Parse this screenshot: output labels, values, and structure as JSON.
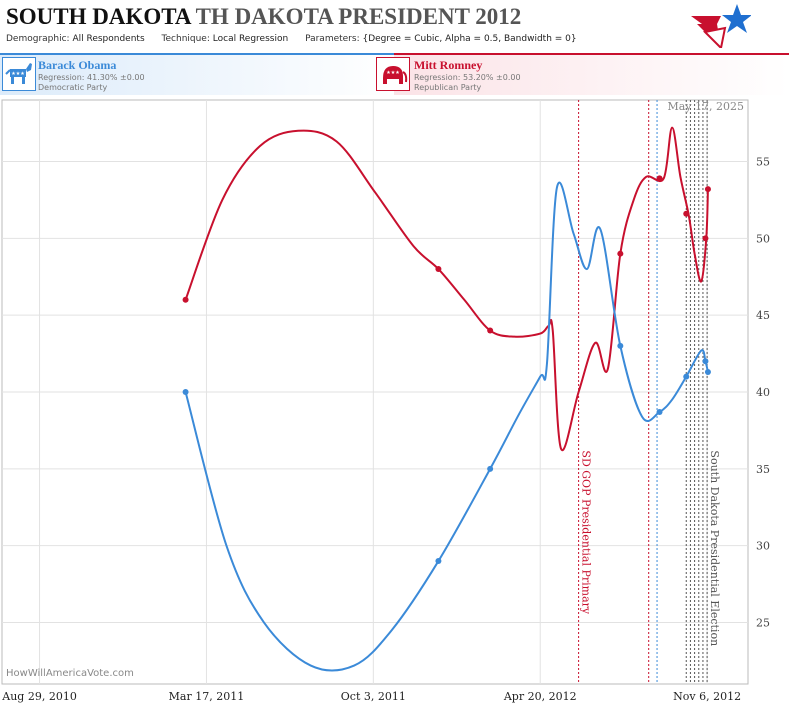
{
  "header": {
    "title_state": "SOUTH DAKOTA",
    "title_rest": "TH DAKOTA PRESIDENT 2012",
    "params": [
      {
        "key": "Demographic:",
        "value": "All Respondents"
      },
      {
        "key": "Technique:",
        "value": "Local Regression"
      },
      {
        "key": "Parameters:",
        "value": "{Degree = Cubic, Alpha = 0.5, Bandwidth = 0}"
      }
    ]
  },
  "candidates": {
    "dem": {
      "name": "Barack Obama",
      "regression": "Regression: 41.30% ±0.00",
      "party": "Democratic Party",
      "icon": "donkey-icon",
      "color": "#3b8ad8"
    },
    "rep": {
      "name": "Mitt Romney",
      "regression": "Regression: 53.20% ±0.00",
      "party": "Republican Party",
      "icon": "elephant-icon",
      "color": "#c8102e"
    }
  },
  "date_label": "May 17, 2025",
  "watermark": "HowWillAmericaVote.com",
  "chart_data": {
    "type": "line",
    "x_type": "date",
    "xlim": [
      "2010-07-15",
      "2012-12-25"
    ],
    "ylim": [
      21,
      59
    ],
    "y_ticks": [
      25,
      30,
      35,
      40,
      45,
      50,
      55
    ],
    "x_ticks": [
      "2010-08-29",
      "2011-03-17",
      "2011-10-03",
      "2012-04-20",
      "2012-11-06"
    ],
    "x_tick_labels": [
      "Aug 29, 2010",
      "Mar 17, 2011",
      "Oct 3, 2011",
      "Apr 20, 2012",
      "Nov 6, 2012"
    ],
    "grid": true,
    "series": [
      {
        "name": "Mitt Romney",
        "color": "#c8102e",
        "curve": [
          [
            "2011-02-20",
            46
          ],
          [
            "2011-04-05",
            52.5
          ],
          [
            "2011-05-20",
            56
          ],
          [
            "2011-07-05",
            57
          ],
          [
            "2011-08-20",
            56.3
          ],
          [
            "2011-10-05",
            53
          ],
          [
            "2011-11-20",
            49.5
          ],
          [
            "2011-12-20",
            48
          ],
          [
            "2012-01-20",
            46
          ],
          [
            "2012-02-20",
            44
          ],
          [
            "2012-03-20",
            43.6
          ],
          [
            "2012-04-20",
            43.8
          ],
          [
            "2012-04-30",
            44.3
          ],
          [
            "2012-05-05",
            44
          ],
          [
            "2012-05-15",
            36.3
          ],
          [
            "2012-06-05",
            40
          ],
          [
            "2012-06-25",
            43.2
          ],
          [
            "2012-07-10",
            41.5
          ],
          [
            "2012-07-25",
            49
          ],
          [
            "2012-08-10",
            52.5
          ],
          [
            "2012-08-25",
            54
          ],
          [
            "2012-09-15",
            53.9
          ],
          [
            "2012-09-25",
            57.2
          ],
          [
            "2012-10-05",
            54
          ],
          [
            "2012-10-15",
            51.5
          ],
          [
            "2012-10-22",
            49
          ],
          [
            "2012-10-30",
            47.2
          ],
          [
            "2012-11-05",
            50
          ],
          [
            "2012-11-07",
            53.2
          ]
        ],
        "points": [
          [
            "2011-02-20",
            46
          ],
          [
            "2011-12-20",
            48
          ],
          [
            "2012-02-20",
            44
          ],
          [
            "2012-07-25",
            49
          ],
          [
            "2012-09-10",
            53.9
          ],
          [
            "2012-10-12",
            51.6
          ],
          [
            "2012-11-04",
            50
          ],
          [
            "2012-11-07",
            53.2
          ]
        ]
      },
      {
        "name": "Barack Obama",
        "color": "#3b8ad8",
        "curve": [
          [
            "2011-02-20",
            40
          ],
          [
            "2011-04-10",
            30
          ],
          [
            "2011-05-25",
            25
          ],
          [
            "2011-07-20",
            22.2
          ],
          [
            "2011-09-10",
            22.2
          ],
          [
            "2011-10-25",
            24.5
          ],
          [
            "2011-12-20",
            29
          ],
          [
            "2012-02-20",
            35
          ],
          [
            "2012-03-25",
            38.5
          ],
          [
            "2012-04-20",
            41
          ],
          [
            "2012-04-28",
            41.8
          ],
          [
            "2012-05-10",
            53.3
          ],
          [
            "2012-05-30",
            50.3
          ],
          [
            "2012-06-15",
            48
          ],
          [
            "2012-07-01",
            50.6
          ],
          [
            "2012-07-25",
            43
          ],
          [
            "2012-08-20",
            38.4
          ],
          [
            "2012-09-10",
            38.7
          ],
          [
            "2012-09-25",
            39.5
          ],
          [
            "2012-10-12",
            41
          ],
          [
            "2012-10-30",
            42.7
          ],
          [
            "2012-11-04",
            42
          ],
          [
            "2012-11-07",
            41.3
          ]
        ],
        "points": [
          [
            "2011-02-20",
            40
          ],
          [
            "2011-12-20",
            29
          ],
          [
            "2012-02-20",
            35
          ],
          [
            "2012-07-25",
            43
          ],
          [
            "2012-09-10",
            38.7
          ],
          [
            "2012-10-12",
            41
          ],
          [
            "2012-11-04",
            42
          ],
          [
            "2012-11-07",
            41.3
          ]
        ]
      }
    ],
    "event_lines": [
      {
        "date": "2012-06-05",
        "color": "#c8102e",
        "label": "SD GOP Presidential Primary"
      },
      {
        "date": "2012-11-06",
        "color": "#555555",
        "label": "South Dakota Presidential Election"
      }
    ],
    "poll_lines": [
      {
        "date": "2012-08-28",
        "color": "#c8102e"
      },
      {
        "date": "2012-09-07",
        "color": "#3b8ad8"
      },
      {
        "date": "2012-10-12",
        "color": "#555555"
      },
      {
        "date": "2012-10-17",
        "color": "#555555"
      },
      {
        "date": "2012-10-22",
        "color": "#555555"
      },
      {
        "date": "2012-10-27",
        "color": "#555555"
      },
      {
        "date": "2012-11-01",
        "color": "#555555"
      }
    ]
  }
}
